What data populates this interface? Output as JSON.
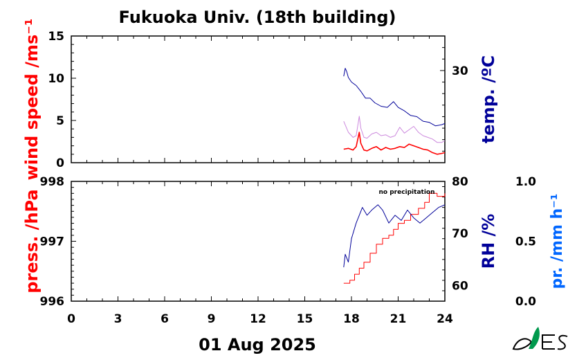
{
  "title": "Fukuoka Univ. (18th building)",
  "date_label": "01 Aug 2025",
  "note": "no precipitation",
  "colors": {
    "wind": "#ff0000",
    "temp": "#000099",
    "press": "#ff0000",
    "rh": "#000099",
    "precip": "#0066ff",
    "wind_gust": "#cc88dd"
  },
  "logo": "leaf-logo",
  "chart_data": [
    {
      "type": "line",
      "panel": "top",
      "xlabel": "",
      "xlim": [
        0,
        24
      ],
      "x_ticks": [
        "0",
        "3",
        "6",
        "9",
        "12",
        "15",
        "18",
        "21",
        "24"
      ],
      "left_axis": {
        "label": "wind speed /ms⁻¹",
        "ylim": [
          0,
          15
        ],
        "ticks": [
          "0",
          "5",
          "10",
          "15"
        ]
      },
      "right_axis": {
        "label": "temp. /ºC",
        "ylim": [
          22,
          33
        ],
        "ticks": [
          "30"
        ]
      },
      "series": [
        {
          "name": "wind",
          "axis": "left",
          "x": [
            17.5,
            17.8,
            18.1,
            18.3,
            18.5,
            18.6,
            18.8,
            19.0,
            19.3,
            19.6,
            19.9,
            20.2,
            20.5,
            20.8,
            21.1,
            21.4,
            21.7,
            22.0,
            22.3,
            22.6,
            22.9,
            23.2,
            23.5,
            23.8,
            24.0
          ],
          "y": [
            1.6,
            1.7,
            1.5,
            1.9,
            3.6,
            2.3,
            1.5,
            1.4,
            1.7,
            1.9,
            1.5,
            1.8,
            1.6,
            1.7,
            1.9,
            1.8,
            2.2,
            2.0,
            1.8,
            1.6,
            1.5,
            1.2,
            1.0,
            1.1,
            1.2
          ]
        },
        {
          "name": "wind gust",
          "axis": "left",
          "x": [
            17.5,
            17.8,
            18.1,
            18.3,
            18.5,
            18.6,
            18.8,
            19.0,
            19.3,
            19.6,
            19.9,
            20.2,
            20.5,
            20.8,
            21.1,
            21.4,
            21.7,
            22.0,
            22.3,
            22.6,
            22.9,
            23.2,
            23.5,
            23.8,
            24.0
          ],
          "y": [
            4.9,
            3.6,
            3.0,
            3.2,
            5.5,
            4.1,
            3.0,
            2.9,
            3.4,
            3.6,
            3.2,
            3.3,
            3.0,
            3.2,
            4.2,
            3.5,
            3.9,
            4.3,
            3.6,
            3.2,
            3.0,
            2.8,
            2.4,
            2.4,
            2.6
          ]
        },
        {
          "name": "temp",
          "axis": "right",
          "x": [
            17.5,
            17.6,
            17.7,
            17.8,
            18.0,
            18.3,
            18.6,
            18.9,
            19.2,
            19.5,
            19.9,
            20.3,
            20.7,
            21.0,
            21.4,
            21.8,
            22.2,
            22.6,
            23.0,
            23.4,
            23.8,
            24.0
          ],
          "y": [
            29.5,
            30.2,
            29.9,
            29.4,
            29.0,
            28.7,
            28.2,
            27.6,
            27.6,
            27.2,
            26.9,
            26.8,
            27.3,
            26.8,
            26.5,
            26.1,
            26.0,
            25.6,
            25.5,
            25.2,
            25.3,
            25.4
          ]
        }
      ]
    },
    {
      "type": "line",
      "panel": "bottom",
      "xlabel": "01 Aug 2025",
      "xlim": [
        0,
        24
      ],
      "x_ticks": [
        "0",
        "3",
        "6",
        "9",
        "12",
        "15",
        "18",
        "21",
        "24"
      ],
      "left_axis": {
        "label": "press. /hPa",
        "ylim": [
          996,
          998
        ],
        "ticks": [
          "996",
          "997",
          "998"
        ]
      },
      "right_axis": {
        "label": "RH /%",
        "ylim": [
          57,
          80
        ],
        "ticks": [
          "60",
          "70",
          "80"
        ]
      },
      "far_right_axis": {
        "label": "pr. /mm h⁻¹",
        "ylim": [
          0,
          1
        ],
        "ticks": [
          "0.0",
          "0.5",
          "1.0"
        ]
      },
      "series": [
        {
          "name": "press",
          "axis": "left",
          "x": [
            17.5,
            17.9,
            18.2,
            18.5,
            18.8,
            19.2,
            19.6,
            20.0,
            20.4,
            20.7,
            21.0,
            21.4,
            21.8,
            22.3,
            22.7,
            23.0,
            23.5,
            24.0
          ],
          "y": [
            996.3,
            996.35,
            996.45,
            996.55,
            996.65,
            996.8,
            996.95,
            997.05,
            997.1,
            997.2,
            997.3,
            997.35,
            997.45,
            997.55,
            997.65,
            997.8,
            997.75,
            997.8
          ]
        },
        {
          "name": "RH",
          "axis": "right",
          "x": [
            17.5,
            17.6,
            17.8,
            18.0,
            18.3,
            18.5,
            18.7,
            19.0,
            19.3,
            19.7,
            20.0,
            20.4,
            20.8,
            21.2,
            21.6,
            22.0,
            22.4,
            22.8,
            23.2,
            23.6,
            24.0
          ],
          "y": [
            63.5,
            66.0,
            64.5,
            69.0,
            72.0,
            73.5,
            75.0,
            73.5,
            74.5,
            75.5,
            74.5,
            72.0,
            73.5,
            72.5,
            74.5,
            73.0,
            72.0,
            73.0,
            74.0,
            75.0,
            75.5
          ]
        }
      ]
    }
  ]
}
